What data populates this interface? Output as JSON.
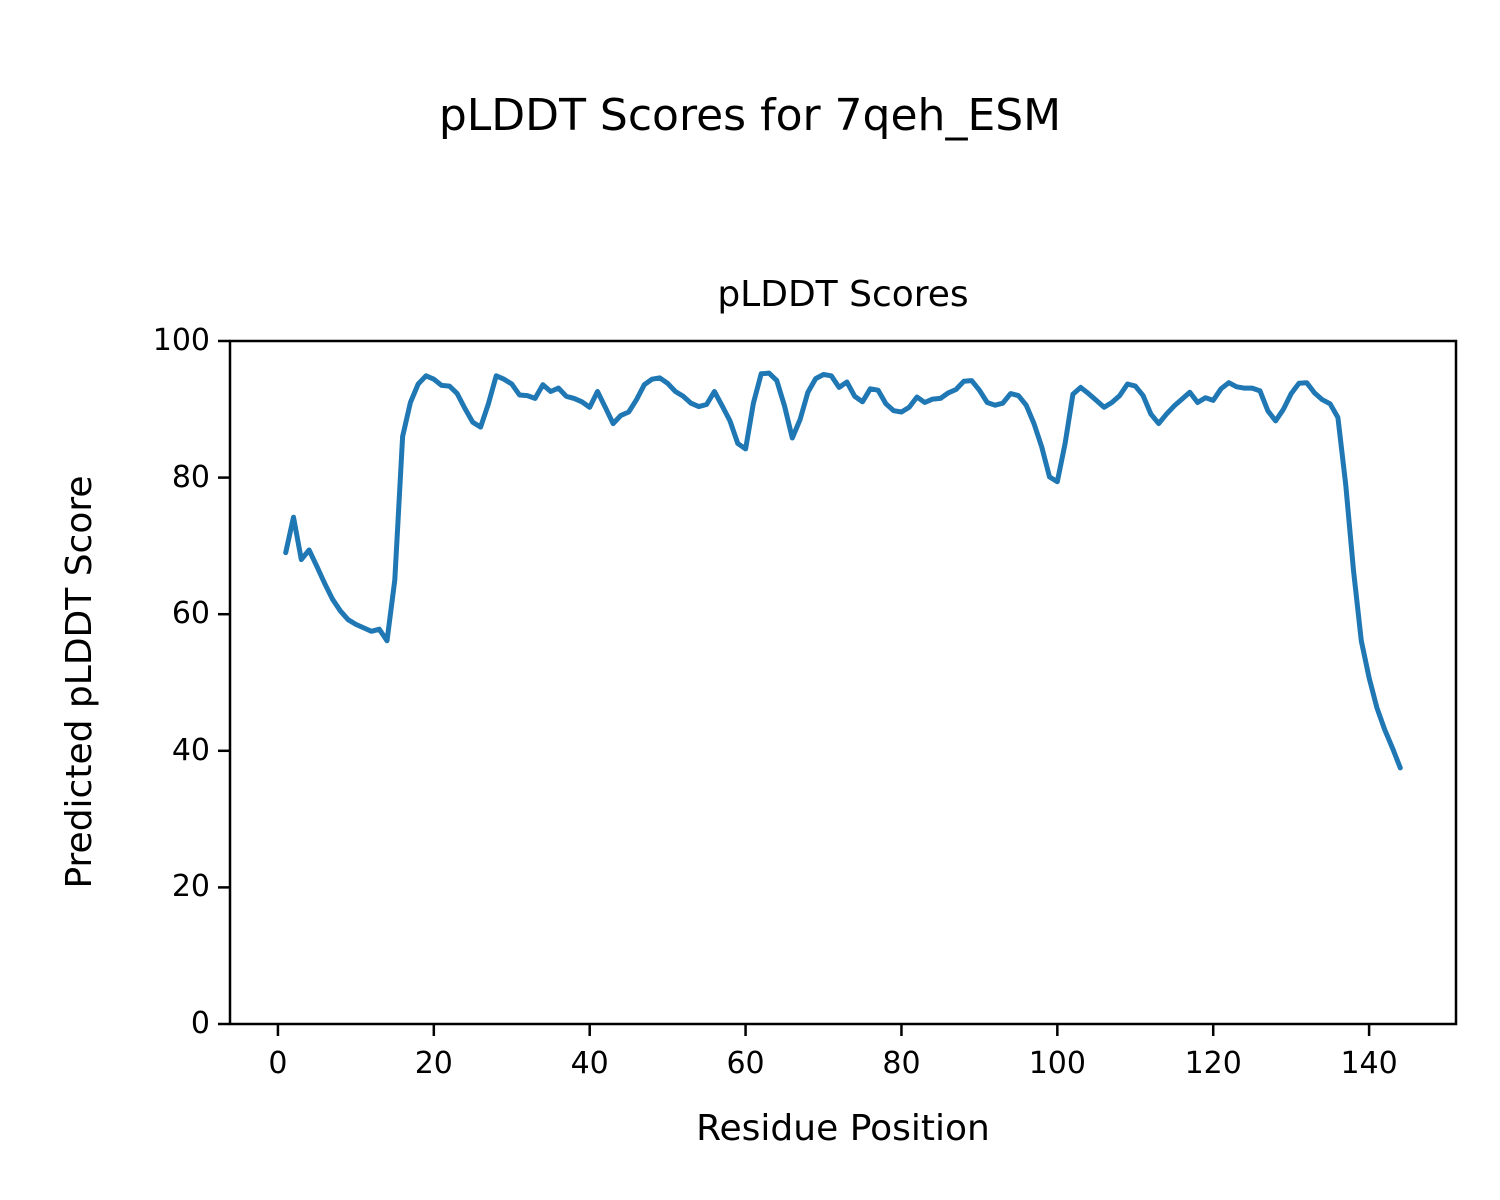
{
  "figure": {
    "suptitle": "pLDDT Scores for 7qeh_ESM"
  },
  "chart_data": {
    "type": "line",
    "title": "pLDDT Scores",
    "xlabel": "Residue Position",
    "ylabel": "Predicted pLDDT Score",
    "legend": "none",
    "grid": "off",
    "line_color": "#1f77b4",
    "axis_color": "#000000",
    "background_color": "#ffffff",
    "xlim": [
      -6.15,
      151.15
    ],
    "ylim": [
      0,
      100
    ],
    "xticks": [
      0,
      20,
      40,
      60,
      80,
      100,
      120,
      140
    ],
    "yticks": [
      0,
      20,
      40,
      60,
      80,
      100
    ],
    "x": [
      1,
      2,
      3,
      4,
      5,
      6,
      7,
      8,
      9,
      10,
      11,
      12,
      13,
      14,
      15,
      16,
      17,
      18,
      19,
      20,
      21,
      22,
      23,
      24,
      25,
      26,
      27,
      28,
      29,
      30,
      31,
      32,
      33,
      34,
      35,
      36,
      37,
      38,
      39,
      40,
      41,
      42,
      43,
      44,
      45,
      46,
      47,
      48,
      49,
      50,
      51,
      52,
      53,
      54,
      55,
      56,
      57,
      58,
      59,
      60,
      61,
      62,
      63,
      64,
      65,
      66,
      67,
      68,
      69,
      70,
      71,
      72,
      73,
      74,
      75,
      76,
      77,
      78,
      79,
      80,
      81,
      82,
      83,
      84,
      85,
      86,
      87,
      88,
      89,
      90,
      91,
      92,
      93,
      94,
      95,
      96,
      97,
      98,
      99,
      100,
      101,
      102,
      103,
      104,
      105,
      106,
      107,
      108,
      109,
      110,
      111,
      112,
      113,
      114,
      115,
      116,
      117,
      118,
      119,
      120,
      121,
      122,
      123,
      124,
      125,
      126,
      127,
      128,
      129,
      130,
      131,
      132,
      133,
      134,
      135,
      136,
      137,
      138,
      139,
      140,
      141,
      142,
      143,
      144
    ],
    "y": [
      69.0,
      74.2,
      68.0,
      69.4,
      67.0,
      64.5,
      62.2,
      60.5,
      59.2,
      58.5,
      58.0,
      57.5,
      57.8,
      56.1,
      65.0,
      86.0,
      91.0,
      93.7,
      94.9,
      94.4,
      93.5,
      93.4,
      92.3,
      90.1,
      88.1,
      87.4,
      90.8,
      94.9,
      94.4,
      93.7,
      92.1,
      92.0,
      91.6,
      93.6,
      92.6,
      93.1,
      91.9,
      91.6,
      91.1,
      90.3,
      92.6,
      90.3,
      87.9,
      89.1,
      89.6,
      91.4,
      93.6,
      94.4,
      94.6,
      93.8,
      92.6,
      91.9,
      90.9,
      90.4,
      90.7,
      92.6,
      90.5,
      88.3,
      85.0,
      84.2,
      90.9,
      95.2,
      95.3,
      94.2,
      90.5,
      85.8,
      88.5,
      92.5,
      94.5,
      95.1,
      94.9,
      93.2,
      94.0,
      91.9,
      91.1,
      93.0,
      92.8,
      90.8,
      89.8,
      89.6,
      90.3,
      91.8,
      91.0,
      91.5,
      91.6,
      92.4,
      92.9,
      94.1,
      94.2,
      92.8,
      91.0,
      90.6,
      90.9,
      92.3,
      92.0,
      90.6,
      87.9,
      84.5,
      80.1,
      79.4,
      85.0,
      92.2,
      93.2,
      92.3,
      91.3,
      90.3,
      91.0,
      92.0,
      93.7,
      93.4,
      92.0,
      89.3,
      87.9,
      89.3,
      90.5,
      91.5,
      92.5,
      91.0,
      91.7,
      91.3,
      93.0,
      93.9,
      93.3,
      93.1,
      93.1,
      92.7,
      89.8,
      88.3,
      90.0,
      92.3,
      93.8,
      93.9,
      92.4,
      91.4,
      90.8,
      88.8,
      79.0,
      66.4,
      56.1,
      50.7,
      46.3,
      43.1,
      40.4,
      37.5
    ]
  }
}
